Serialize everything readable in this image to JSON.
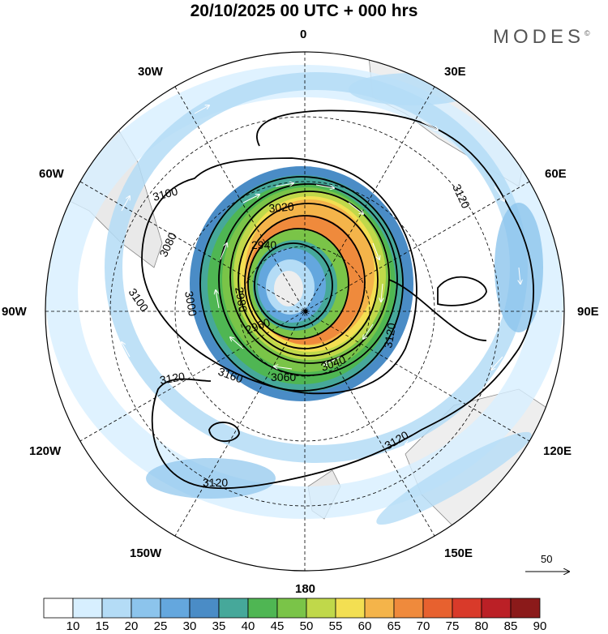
{
  "header": {
    "title": "20/10/2025  00 UTC  + 000 hrs",
    "brand": "MODES",
    "brand_mark": "©"
  },
  "longitude_labels": {
    "top": "0",
    "w30": "30W",
    "e30": "30E",
    "w60": "60W",
    "e60": "60E",
    "w90": "90W",
    "e90": "90E",
    "w120": "120W",
    "e120": "120E",
    "w150": "150W",
    "e150": "150E",
    "bottom": "180"
  },
  "contour_labels": [
    "3100",
    "3080",
    "3100",
    "3020",
    "2940",
    "2980",
    "3000",
    "2960",
    "3040",
    "3060",
    "3160",
    "3120",
    "3120",
    "3120",
    "3120",
    "3120",
    "3120",
    "3100"
  ],
  "reference_arrow": {
    "value": "50"
  },
  "colorbar": {
    "ticks": [
      "10",
      "15",
      "20",
      "25",
      "30",
      "35",
      "40",
      "45",
      "50",
      "55",
      "60",
      "65",
      "70",
      "75",
      "80",
      "85",
      "90"
    ],
    "colors": [
      "#ffffff",
      "#d7efff",
      "#b4dcf6",
      "#8cc4ec",
      "#64a7de",
      "#4a8cc6",
      "#46a89a",
      "#4fb653",
      "#7ac448",
      "#c0d84a",
      "#f3df52",
      "#f4b44a",
      "#ef8a3c",
      "#e7612f",
      "#d93a2a",
      "#bb2026",
      "#8b1a1a"
    ]
  }
}
